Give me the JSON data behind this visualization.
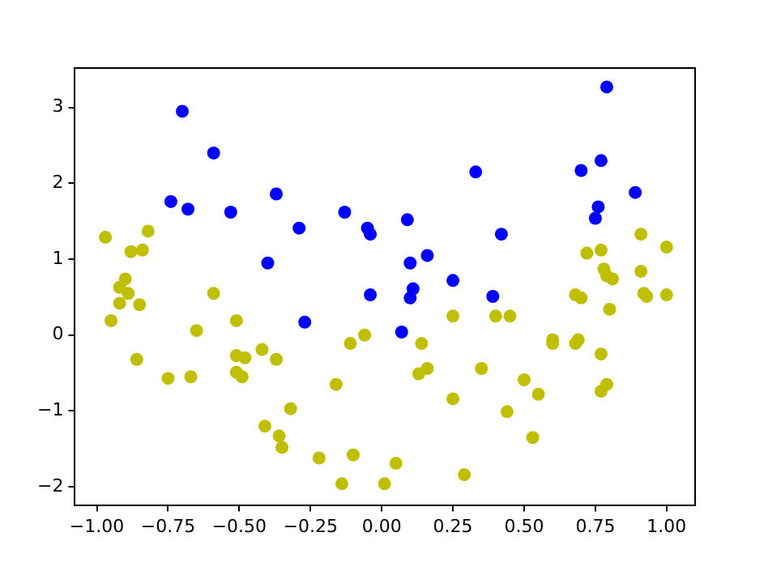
{
  "chart_data": {
    "type": "scatter",
    "marker": "circle",
    "grid": false,
    "legend": false,
    "xlim": [
      -1.077,
      1.1
    ],
    "ylim": [
      -2.24,
      3.52
    ],
    "xticks": [
      {
        "value": -1,
        "label": "−1.00"
      },
      {
        "value": -0.75,
        "label": "−0.75"
      },
      {
        "value": -0.5,
        "label": "−0.50"
      },
      {
        "value": -0.25,
        "label": "−0.25"
      },
      {
        "value": 0,
        "label": "0.00"
      },
      {
        "value": 0.25,
        "label": "0.25"
      },
      {
        "value": 0.5,
        "label": "0.50"
      },
      {
        "value": 0.75,
        "label": "0.75"
      },
      {
        "value": 1,
        "label": "1.00"
      }
    ],
    "yticks": [
      {
        "value": -2,
        "label": "−2"
      },
      {
        "value": -1,
        "label": "−1"
      },
      0,
      1,
      2,
      3
    ],
    "series": [
      {
        "color": "#0000ff",
        "x": [
          -0.7,
          -0.59,
          -0.74,
          -0.68,
          -0.53,
          -0.37,
          -0.29,
          -0.4,
          -0.27,
          -0.13,
          -0.05,
          -0.04,
          -0.04,
          0.07,
          0.09,
          0.1,
          0.11,
          0.1,
          0.16,
          0.25,
          0.33,
          0.39,
          0.42,
          0.7,
          0.77,
          0.76,
          0.75,
          0.79,
          0.89
        ],
        "values": [
          2.95,
          2.4,
          1.76,
          1.66,
          1.62,
          1.86,
          1.41,
          0.95,
          0.17,
          1.62,
          1.41,
          1.33,
          0.53,
          0.04,
          1.52,
          0.95,
          0.61,
          0.49,
          1.05,
          0.72,
          2.15,
          0.51,
          1.33,
          2.17,
          2.3,
          1.69,
          1.54,
          3.27,
          1.88
        ]
      },
      {
        "color": "#bfbf00",
        "x": [
          -0.97,
          -0.95,
          -0.92,
          -0.9,
          -0.89,
          -0.92,
          -0.88,
          -0.84,
          -0.82,
          -0.85,
          -0.86,
          -0.75,
          -0.67,
          -0.65,
          -0.59,
          -0.51,
          -0.51,
          -0.48,
          -0.51,
          -0.49,
          -0.42,
          -0.37,
          -0.41,
          -0.36,
          -0.35,
          -0.32,
          -0.22,
          -0.14,
          -0.1,
          -0.16,
          -0.11,
          -0.06,
          0.01,
          0.05,
          0.14,
          0.13,
          0.16,
          0.25,
          0.25,
          0.29,
          0.35,
          0.4,
          0.44,
          0.45,
          0.5,
          0.55,
          0.53,
          0.6,
          0.6,
          0.68,
          0.68,
          0.69,
          0.77,
          0.77,
          0.7,
          0.8,
          0.72,
          0.77,
          0.78,
          0.79,
          0.79,
          0.81,
          0.91,
          0.91,
          0.92,
          0.93,
          1.0,
          1.0
        ],
        "values": [
          1.29,
          0.19,
          0.63,
          0.74,
          0.55,
          0.42,
          1.1,
          1.12,
          1.37,
          0.4,
          -0.32,
          -0.57,
          -0.55,
          0.06,
          0.55,
          0.19,
          -0.27,
          -0.3,
          -0.49,
          -0.55,
          -0.19,
          -0.32,
          -1.2,
          -1.33,
          -1.48,
          -0.97,
          -1.62,
          -1.96,
          -1.58,
          -0.65,
          -0.11,
          0.0,
          -1.96,
          -1.69,
          -0.11,
          -0.51,
          -0.44,
          0.25,
          -0.84,
          -1.84,
          -0.44,
          0.25,
          -1.01,
          0.25,
          -0.59,
          -0.78,
          -1.35,
          -0.06,
          -0.11,
          0.53,
          -0.11,
          -0.06,
          -0.74,
          -0.25,
          0.49,
          0.34,
          1.08,
          1.12,
          0.87,
          -0.65,
          0.78,
          0.74,
          1.33,
          0.84,
          0.55,
          0.51,
          1.16,
          0.53
        ]
      }
    ]
  }
}
